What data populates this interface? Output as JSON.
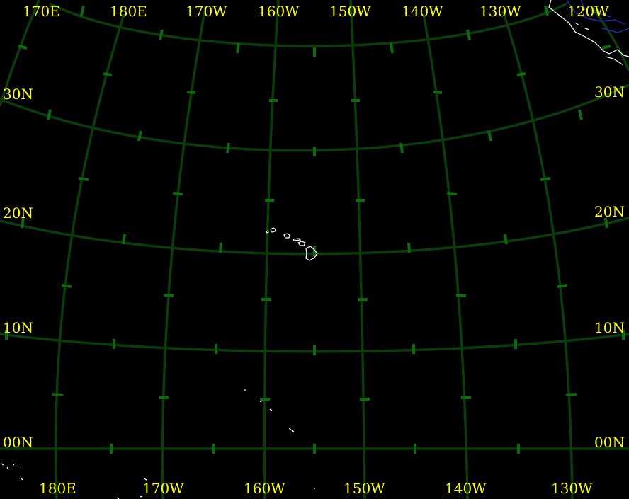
{
  "map": {
    "projection": "conic",
    "colors": {
      "background": "#000000",
      "graticule": "#0b3d0b",
      "ticks": "#0e6a0e",
      "labels": "#ffff00",
      "coastline": "#ffffff",
      "borders": "#1c2fd8"
    },
    "top_longitude_labels": [
      "170E",
      "180E",
      "170W",
      "160W",
      "150W",
      "140W",
      "130W",
      "120W"
    ],
    "bottom_longitude_labels": [
      "180E",
      "170W",
      "160W",
      "150W",
      "140W",
      "130W"
    ],
    "left_latitude_labels": [
      "30N",
      "20N",
      "10N",
      "00N"
    ],
    "right_latitude_labels": [
      "30N",
      "20N",
      "10N",
      "00N"
    ],
    "features": [
      "hawaiian-islands",
      "line-islands",
      "north-america-coast",
      "pacific-atolls"
    ]
  }
}
